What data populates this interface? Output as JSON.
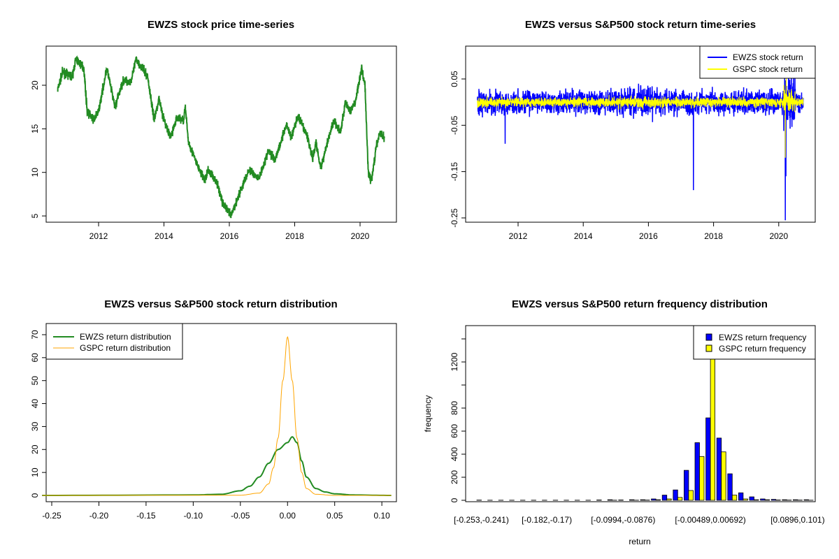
{
  "chart_data": [
    {
      "type": "line",
      "title": "EWZS stock price time-series",
      "xlabel": "",
      "ylabel": "",
      "xticks": [
        "2012",
        "2014",
        "2016",
        "2018",
        "2020"
      ],
      "yticks": [
        "5",
        "10",
        "15",
        "20"
      ],
      "color": "#228B22",
      "x": [
        2010.75,
        2010.9,
        2011.2,
        2011.3,
        2011.55,
        2011.65,
        2011.85,
        2012.0,
        2012.25,
        2012.5,
        2012.75,
        2013.0,
        2013.15,
        2013.5,
        2013.7,
        2013.85,
        2014.0,
        2014.2,
        2014.4,
        2014.6,
        2014.65,
        2014.75,
        2015.0,
        2015.25,
        2015.35,
        2015.6,
        2015.8,
        2016.05,
        2016.3,
        2016.6,
        2016.9,
        2017.2,
        2017.4,
        2017.75,
        2017.9,
        2018.1,
        2018.4,
        2018.55,
        2018.65,
        2018.8,
        2019.0,
        2019.2,
        2019.4,
        2019.55,
        2019.7,
        2019.85,
        2020.05,
        2020.15,
        2020.25,
        2020.35,
        2020.5,
        2020.6,
        2020.75
      ],
      "y": [
        19.5,
        21.5,
        21,
        23,
        22,
        17,
        16,
        17,
        22,
        17.5,
        20.5,
        20.5,
        23,
        21,
        16,
        18.5,
        16,
        14,
        16.3,
        16,
        17.5,
        13.5,
        11,
        9,
        10.3,
        9,
        6.5,
        5,
        7.5,
        10.3,
        9.3,
        12.5,
        11.5,
        15.5,
        14,
        16.5,
        14,
        11.5,
        13.5,
        10.5,
        13.5,
        16,
        14.5,
        18,
        17,
        18,
        22,
        20,
        10,
        9,
        13,
        14.5,
        14
      ]
    },
    {
      "type": "line",
      "title": "EWZS versus S&P500 stock return time-series",
      "xticks": [
        "2012",
        "2014",
        "2016",
        "2018",
        "2020"
      ],
      "yticks": [
        "0.05",
        "-0.05",
        "-0.15",
        "-0.25"
      ],
      "series": [
        {
          "name": "EWZS stock return",
          "color": "#0000FF",
          "sd": 0.022,
          "spikes": [
            [
              2011.6,
              -0.09
            ],
            [
              2017.38,
              -0.19
            ],
            [
              2020.2,
              -0.255
            ],
            [
              2020.22,
              -0.16
            ],
            [
              2020.3,
              0.09
            ]
          ]
        },
        {
          "name": "GSPC stock return",
          "color": "#FFFF00",
          "sd": 0.009,
          "spikes": [
            [
              2020.2,
              -0.12
            ],
            [
              2020.23,
              0.09
            ]
          ]
        }
      ]
    },
    {
      "type": "line",
      "title": "EWZS versus S&P500 stock return distribution",
      "xticks": [
        "-0.25",
        "-0.20",
        "-0.15",
        "-0.10",
        "-0.05",
        "0.00",
        "0.05",
        "0.10"
      ],
      "yticks": [
        "0",
        "10",
        "20",
        "30",
        "40",
        "50",
        "60",
        "70"
      ],
      "series": [
        {
          "name": "EWZS return distribution",
          "color": "#228B22",
          "x": [
            -0.26,
            -0.1,
            -0.07,
            -0.05,
            -0.04,
            -0.03,
            -0.02,
            -0.01,
            0,
            0.005,
            0.01,
            0.015,
            0.02,
            0.03,
            0.04,
            0.05,
            0.07,
            0.11
          ],
          "y": [
            0,
            0.2,
            0.5,
            2,
            4,
            8,
            14,
            20,
            23,
            25.5,
            23,
            15,
            8,
            3,
            1.5,
            0.7,
            0.2,
            0
          ]
        },
        {
          "name": "GSPC return distribution",
          "color": "#FFA500",
          "x": [
            -0.26,
            -0.05,
            -0.03,
            -0.02,
            -0.015,
            -0.01,
            -0.005,
            0,
            0.005,
            0.01,
            0.015,
            0.02,
            0.03,
            0.05,
            0.11
          ],
          "y": [
            0,
            0.1,
            1,
            5,
            12,
            25,
            50,
            69,
            50,
            25,
            10,
            3,
            0.5,
            0,
            0
          ]
        }
      ]
    },
    {
      "type": "bar",
      "title": "EWZS versus S&P500 return frequency distribution",
      "xlabel": "return",
      "ylabel": "frequency",
      "xticklabels": [
        [
          0,
          "[-0.253,-0.241)"
        ],
        [
          6,
          "[-0.182,-0.17)"
        ],
        [
          13,
          "[-0.0994,-0.0876)"
        ],
        [
          21,
          "[-0.00489,0.00692)"
        ],
        [
          29,
          "[0.0896,0.101)"
        ]
      ],
      "yticks": [
        "0",
        "200",
        "400",
        "600",
        "800",
        "1200"
      ],
      "series": [
        {
          "name": "EWZS return frequency",
          "color": "#0000FF",
          "values": [
            2,
            1,
            1,
            1,
            1,
            1,
            1,
            1,
            1,
            1,
            1,
            3,
            5,
            3,
            5,
            5,
            12,
            45,
            90,
            260,
            500,
            715,
            540,
            230,
            65,
            30,
            12,
            8,
            5,
            5,
            5
          ]
        },
        {
          "name": "GSPC return frequency",
          "color": "#FFFF00",
          "values": [
            0,
            0,
            0,
            0,
            0,
            0,
            0,
            0,
            0,
            0,
            0,
            0,
            1,
            0,
            1,
            2,
            5,
            12,
            25,
            85,
            380,
            1500,
            420,
            45,
            12,
            5,
            5,
            3,
            2,
            2,
            1
          ]
        }
      ]
    }
  ]
}
